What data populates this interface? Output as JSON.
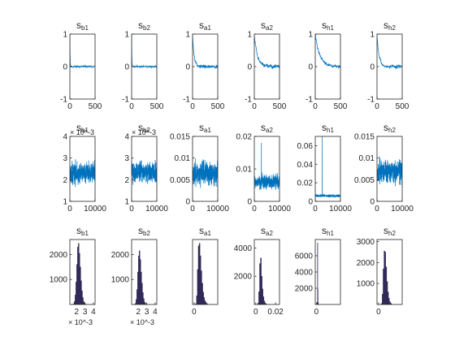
{
  "chart_data": [
    {
      "type": "grid",
      "title": "",
      "rows": 3,
      "cols": 6,
      "panels": [
        {
          "row": 0,
          "col": 0,
          "type": "line",
          "title": {
            "base": "s",
            "sub": "b1"
          },
          "xlim": [
            0,
            500
          ],
          "ylim": [
            -1,
            1
          ],
          "xticks": [
            {
              "v": 0,
              "label": "0"
            },
            {
              "v": 500,
              "label": "500"
            }
          ],
          "yticks": [
            {
              "v": -1,
              "label": "-1"
            },
            {
              "v": 0,
              "label": "0"
            },
            {
              "v": 1,
              "label": "1"
            }
          ],
          "series": {
            "kind": "acf",
            "start": 1,
            "decay": 4,
            "tail": 0.03,
            "points": 120,
            "seed": 11
          }
        },
        {
          "row": 0,
          "col": 1,
          "type": "line",
          "title": {
            "base": "s",
            "sub": "b2"
          },
          "xlim": [
            0,
            500
          ],
          "ylim": [
            -1,
            1
          ],
          "xticks": [
            {
              "v": 0,
              "label": "0"
            },
            {
              "v": 500,
              "label": "500"
            }
          ],
          "yticks": [
            {
              "v": -1,
              "label": "-1"
            },
            {
              "v": 0,
              "label": "0"
            },
            {
              "v": 1,
              "label": "1"
            }
          ],
          "series": {
            "kind": "acf",
            "start": 1,
            "decay": 4,
            "tail": 0.03,
            "points": 120,
            "seed": 12
          }
        },
        {
          "row": 0,
          "col": 2,
          "type": "line",
          "title": {
            "base": "s",
            "sub": "a1"
          },
          "xlim": [
            0,
            500
          ],
          "ylim": [
            -1,
            1
          ],
          "xticks": [
            {
              "v": 0,
              "label": "0"
            },
            {
              "v": 500,
              "label": "500"
            }
          ],
          "yticks": [
            {
              "v": -1,
              "label": "-1"
            },
            {
              "v": 0,
              "label": "0"
            },
            {
              "v": 1,
              "label": "1"
            }
          ],
          "series": {
            "kind": "acf",
            "start": 1,
            "decay": 30,
            "tail": 0.05,
            "points": 120,
            "seed": 13
          }
        },
        {
          "row": 0,
          "col": 3,
          "type": "line",
          "title": {
            "base": "s",
            "sub": "a2"
          },
          "xlim": [
            0,
            500
          ],
          "ylim": [
            -1,
            1
          ],
          "xticks": [
            {
              "v": 0,
              "label": "0"
            },
            {
              "v": 500,
              "label": "500"
            }
          ],
          "yticks": [
            {
              "v": -1,
              "label": "-1"
            },
            {
              "v": 0,
              "label": "0"
            },
            {
              "v": 1,
              "label": "1"
            }
          ],
          "series": {
            "kind": "acf",
            "start": 1,
            "decay": 60,
            "tail": 0.06,
            "points": 120,
            "seed": 14
          }
        },
        {
          "row": 0,
          "col": 4,
          "type": "line",
          "title": {
            "base": "s",
            "sub": "h1"
          },
          "xlim": [
            0,
            500
          ],
          "ylim": [
            -1,
            1
          ],
          "xticks": [
            {
              "v": 0,
              "label": "0"
            },
            {
              "v": 500,
              "label": "500"
            }
          ],
          "yticks": [
            {
              "v": -1,
              "label": "-1"
            },
            {
              "v": 0,
              "label": "0"
            },
            {
              "v": 1,
              "label": "1"
            }
          ],
          "series": {
            "kind": "acf",
            "start": 1,
            "decay": 90,
            "tail": 0.05,
            "points": 120,
            "seed": 15
          }
        },
        {
          "row": 0,
          "col": 5,
          "type": "line",
          "title": {
            "base": "s",
            "sub": "h2"
          },
          "xlim": [
            0,
            500
          ],
          "ylim": [
            -1,
            1
          ],
          "xticks": [
            {
              "v": 0,
              "label": "0"
            },
            {
              "v": 500,
              "label": "500"
            }
          ],
          "yticks": [
            {
              "v": -1,
              "label": "-1"
            },
            {
              "v": 0,
              "label": "0"
            },
            {
              "v": 1,
              "label": "1"
            }
          ],
          "series": {
            "kind": "acf",
            "start": 1,
            "decay": 40,
            "tail": 0.06,
            "points": 120,
            "seed": 16
          }
        },
        {
          "row": 1,
          "col": 0,
          "type": "line",
          "title": {
            "base": "s",
            "sub": "b1"
          },
          "exponent": "× 10^-3",
          "xlim": [
            0,
            10000
          ],
          "ylim": [
            1,
            4
          ],
          "xticks": [
            {
              "v": 0,
              "label": "0"
            },
            {
              "v": 10000,
              "label": "10000"
            }
          ],
          "yticks": [
            {
              "v": 1,
              "label": "1"
            },
            {
              "v": 2,
              "label": "2"
            },
            {
              "v": 3,
              "label": "3"
            },
            {
              "v": 4,
              "label": "4"
            }
          ],
          "series": {
            "kind": "trace",
            "center": 2.3,
            "spread": 0.45,
            "spike": 0,
            "points": 400,
            "seed": 21
          }
        },
        {
          "row": 1,
          "col": 1,
          "type": "line",
          "title": {
            "base": "s",
            "sub": "b2"
          },
          "exponent": "× 10^-3",
          "xlim": [
            0,
            10000
          ],
          "ylim": [
            1,
            4
          ],
          "xticks": [
            {
              "v": 0,
              "label": "0"
            },
            {
              "v": 10000,
              "label": "10000"
            }
          ],
          "yticks": [
            {
              "v": 1,
              "label": "1"
            },
            {
              "v": 2,
              "label": "2"
            },
            {
              "v": 3,
              "label": "3"
            },
            {
              "v": 4,
              "label": "4"
            }
          ],
          "series": {
            "kind": "trace",
            "center": 2.35,
            "spread": 0.45,
            "spike": 0,
            "points": 400,
            "seed": 22
          }
        },
        {
          "row": 1,
          "col": 2,
          "type": "line",
          "title": {
            "base": "s",
            "sub": "a1"
          },
          "xlim": [
            0,
            10000
          ],
          "ylim": [
            0,
            0.015
          ],
          "xticks": [
            {
              "v": 0,
              "label": "0"
            },
            {
              "v": 10000,
              "label": "10000"
            }
          ],
          "yticks": [
            {
              "v": 0,
              "label": "0"
            },
            {
              "v": 0.005,
              "label": "0.005"
            },
            {
              "v": 0.01,
              "label": "0.01"
            },
            {
              "v": 0.015,
              "label": "0.015"
            }
          ],
          "series": {
            "kind": "trace",
            "center": 0.0065,
            "spread": 0.0025,
            "spike": 0,
            "points": 400,
            "seed": 23
          }
        },
        {
          "row": 1,
          "col": 3,
          "type": "line",
          "title": {
            "base": "s",
            "sub": "a2"
          },
          "xlim": [
            0,
            10000
          ],
          "ylim": [
            0,
            0.02
          ],
          "xticks": [
            {
              "v": 0,
              "label": "0"
            },
            {
              "v": 10000,
              "label": "10000"
            }
          ],
          "yticks": [
            {
              "v": 0,
              "label": "0"
            },
            {
              "v": 0.01,
              "label": "0.01"
            },
            {
              "v": 0.02,
              "label": "0.02"
            }
          ],
          "series": {
            "kind": "trace",
            "center": 0.006,
            "spread": 0.002,
            "spike": 0.018,
            "points": 400,
            "seed": 24
          }
        },
        {
          "row": 1,
          "col": 4,
          "type": "line",
          "title": {
            "base": "s",
            "sub": "h1"
          },
          "xlim": [
            0,
            10000
          ],
          "ylim": [
            0,
            0.07
          ],
          "xticks": [
            {
              "v": 0,
              "label": "0"
            },
            {
              "v": 10000,
              "label": "10000"
            }
          ],
          "yticks": [
            {
              "v": 0,
              "label": "0"
            },
            {
              "v": 0.02,
              "label": "0.02"
            },
            {
              "v": 0.04,
              "label": "0.04"
            },
            {
              "v": 0.06,
              "label": "0.06"
            }
          ],
          "series": {
            "kind": "trace",
            "center": 0.006,
            "spread": 0.0015,
            "spike": 0.07,
            "points": 400,
            "seed": 25
          }
        },
        {
          "row": 1,
          "col": 5,
          "type": "line",
          "title": {
            "base": "s",
            "sub": "h2"
          },
          "xlim": [
            0,
            10000
          ],
          "ylim": [
            0,
            0.015
          ],
          "xticks": [
            {
              "v": 0,
              "label": "0"
            },
            {
              "v": 10000,
              "label": "10000"
            }
          ],
          "yticks": [
            {
              "v": 0,
              "label": "0"
            },
            {
              "v": 0.005,
              "label": "0.005"
            },
            {
              "v": 0.01,
              "label": "0.01"
            },
            {
              "v": 0.015,
              "label": "0.015"
            }
          ],
          "series": {
            "kind": "trace",
            "center": 0.007,
            "spread": 0.0025,
            "spike": 0,
            "points": 400,
            "seed": 26
          }
        },
        {
          "row": 2,
          "col": 0,
          "type": "bar",
          "title": {
            "base": "s",
            "sub": "b1"
          },
          "exponent": "× 10^-3",
          "xlim": [
            1.2,
            4.2
          ],
          "ylim": [
            0,
            2600
          ],
          "xticks": [
            {
              "v": 2,
              "label": "2"
            },
            {
              "v": 3,
              "label": "3"
            },
            {
              "v": 4,
              "label": "4"
            }
          ],
          "yticks": [
            {
              "v": 1000,
              "label": "1000"
            },
            {
              "v": 2000,
              "label": "2000"
            }
          ],
          "bars": {
            "start": 1.5,
            "width": 0.1,
            "counts": [
              5,
              30,
              120,
              380,
              900,
              1600,
              2300,
              2450,
              2050,
              1500,
              950,
              550,
              280,
              120,
              55,
              20,
              8
            ]
          }
        },
        {
          "row": 2,
          "col": 1,
          "type": "bar",
          "title": {
            "base": "s",
            "sub": "b2"
          },
          "exponent": "× 10^-3",
          "xlim": [
            1.2,
            4.2
          ],
          "ylim": [
            0,
            2600
          ],
          "xticks": [
            {
              "v": 2,
              "label": "2"
            },
            {
              "v": 3,
              "label": "3"
            },
            {
              "v": 4,
              "label": "4"
            }
          ],
          "yticks": [
            {
              "v": 1000,
              "label": "1000"
            },
            {
              "v": 2000,
              "label": "2000"
            }
          ],
          "bars": {
            "start": 1.5,
            "width": 0.1,
            "counts": [
              5,
              40,
              200,
              600,
              1300,
              1950,
              2150,
              1800,
              1300,
              850,
              480,
              240,
              100,
              40,
              15,
              5
            ]
          }
        },
        {
          "row": 2,
          "col": 2,
          "type": "bar",
          "title": {
            "base": "s",
            "sub": "a1"
          },
          "xlim": [
            -0.0012,
            0.018
          ],
          "ylim": [
            0,
            2600
          ],
          "xticks": [
            {
              "v": 0,
              "label": "0"
            }
          ],
          "yticks": [],
          "bars": {
            "start": 0.001,
            "width": 0.0007,
            "counts": [
              30,
              350,
              1400,
              2350,
              2450,
              1950,
              1350,
              850,
              500,
              280,
              150,
              80,
              40,
              15
            ]
          }
        },
        {
          "row": 2,
          "col": 3,
          "type": "bar",
          "title": {
            "base": "s",
            "sub": "a2"
          },
          "xlim": [
            -0.0015,
            0.024
          ],
          "ylim": [
            0,
            4600
          ],
          "xticks": [
            {
              "v": 0,
              "label": "0"
            },
            {
              "v": 0.02,
              "label": "0.02"
            }
          ],
          "yticks": [
            {
              "v": 2000,
              "label": "2000"
            },
            {
              "v": 4000,
              "label": "4000"
            }
          ],
          "bars": {
            "start": 0.002,
            "width": 0.0009,
            "counts": [
              100,
              900,
              2900,
              3300,
              2000,
              1100,
              550,
              250,
              100,
              40
            ]
          }
        },
        {
          "row": 2,
          "col": 4,
          "type": "bar",
          "title": {
            "base": "s",
            "sub": "h1"
          },
          "xlim": [
            -0.0035,
            0.072
          ],
          "ylim": [
            0,
            8000
          ],
          "xticks": [
            {
              "v": 0,
              "label": "0"
            }
          ],
          "yticks": [
            {
              "v": 2000,
              "label": "2000"
            },
            {
              "v": 4000,
              "label": "4000"
            },
            {
              "v": 6000,
              "label": "6000"
            }
          ],
          "bars": {
            "start": 0.002,
            "width": 0.0009,
            "counts": [
              250,
              7600,
              1900,
              300,
              50
            ]
          }
        },
        {
          "row": 2,
          "col": 5,
          "type": "bar",
          "title": {
            "base": "s",
            "sub": "h2"
          },
          "xlim": [
            -0.0012,
            0.018
          ],
          "ylim": [
            0,
            3100
          ],
          "xticks": [
            {
              "v": 0,
              "label": "0"
            }
          ],
          "yticks": [
            {
              "v": 1000,
              "label": "1000"
            },
            {
              "v": 2000,
              "label": "2000"
            },
            {
              "v": 3000,
              "label": "3000"
            }
          ],
          "bars": {
            "start": 0.002,
            "width": 0.0007,
            "counts": [
              50,
              500,
              1700,
              2550,
              2500,
              1800,
              1100,
              600,
              300,
              140,
              60,
              20
            ]
          }
        }
      ]
    }
  ],
  "colors": {
    "line": "#0072bd",
    "bar": "#2e2755",
    "axes": "#262626"
  }
}
